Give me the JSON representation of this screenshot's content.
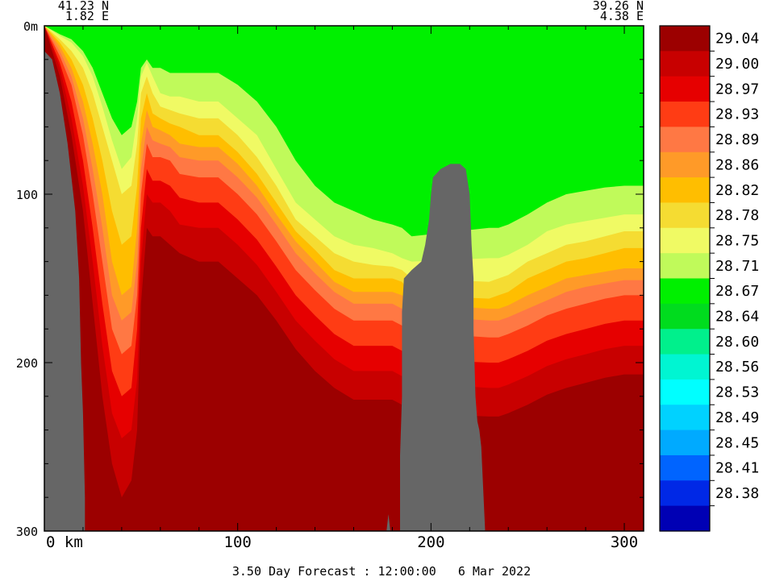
{
  "chart_data": {
    "type": "heatmap",
    "subtype": "vertical section (depth vs along-track distance)",
    "start_label": {
      "lat": "41.23 N",
      "lon": "1.82 E"
    },
    "end_label": {
      "lat": "39.26 N",
      "lon": "4.38 E"
    },
    "x": {
      "unit_label": "km",
      "range": [
        0,
        310
      ],
      "ticks": [
        0,
        100,
        200,
        300
      ],
      "tick_labels": [
        "0 km",
        "100",
        "200",
        "300"
      ]
    },
    "y": {
      "unit_label": "m",
      "range": [
        0,
        300
      ],
      "inverted": true,
      "ticks": [
        0,
        100,
        200,
        300
      ],
      "tick_labels": [
        "0m",
        "100",
        "200",
        "300"
      ]
    },
    "colorbar": {
      "position": "right",
      "levels": [
        "29.04",
        "29.00",
        "28.97",
        "28.93",
        "28.89",
        "28.86",
        "28.82",
        "28.78",
        "28.75",
        "28.71",
        "28.67",
        "28.64",
        "28.60",
        "28.56",
        "28.53",
        "28.49",
        "28.45",
        "28.41",
        "28.38"
      ],
      "colors": [
        "#9c0000",
        "#c80000",
        "#e60000",
        "#ff3c14",
        "#ff7844",
        "#ff9a28",
        "#ffbe00",
        "#f5dc32",
        "#f0fa64",
        "#c0fa5a",
        "#00f000",
        "#00dc1e",
        "#00f08c",
        "#00f5d2",
        "#00ffff",
        "#00d2ff",
        "#00aaff",
        "#0064ff",
        "#0028e6",
        "#0000b4"
      ]
    },
    "topography": {
      "color": "#666666",
      "left_slope": [
        [
          0,
          15
        ],
        [
          4,
          20
        ],
        [
          8,
          40
        ],
        [
          12,
          70
        ],
        [
          16,
          110
        ],
        [
          18,
          150
        ],
        [
          19,
          200
        ],
        [
          20,
          230
        ],
        [
          21,
          280
        ],
        [
          21,
          300
        ]
      ],
      "seamount": [
        [
          177,
          300
        ],
        [
          178,
          290
        ],
        [
          179,
          300
        ],
        [
          184,
          300
        ],
        [
          184,
          255
        ],
        [
          185,
          220
        ],
        [
          185,
          170
        ],
        [
          186,
          150
        ],
        [
          190,
          145
        ],
        [
          195,
          140
        ],
        [
          197,
          130
        ],
        [
          199,
          115
        ],
        [
          200,
          100
        ],
        [
          201,
          90
        ],
        [
          205,
          85
        ],
        [
          210,
          82
        ],
        [
          215,
          82
        ],
        [
          218,
          85
        ],
        [
          220,
          100
        ],
        [
          221,
          130
        ],
        [
          222,
          150
        ],
        [
          222,
          180
        ],
        [
          223,
          220
        ],
        [
          224,
          235
        ],
        [
          225,
          240
        ],
        [
          226,
          250
        ],
        [
          227,
          275
        ],
        [
          228,
          300
        ]
      ]
    },
    "fields": {
      "boundaries_x": [
        0,
        8,
        14,
        20,
        25,
        30,
        35,
        40,
        45,
        48,
        50,
        53,
        56,
        60,
        65,
        70,
        80,
        90,
        100,
        110,
        120,
        130,
        140,
        150,
        160,
        170,
        180,
        185,
        190,
        230,
        235,
        240,
        250,
        260,
        270,
        280,
        290,
        300,
        310
      ],
      "boundaries_depth": [
        [
          0,
          0,
          0,
          0,
          0,
          0,
          0,
          0,
          0,
          0,
          0,
          0,
          0,
          0,
          0,
          0,
          0,
          0,
          0,
          0,
          0,
          0,
          0,
          0,
          0,
          0,
          0,
          0,
          0,
          0,
          0,
          0,
          0,
          0,
          0,
          0,
          0,
          0,
          0
        ],
        [
          0,
          0,
          0,
          0,
          0,
          0,
          0,
          0,
          0,
          0,
          0,
          0,
          0,
          0,
          0,
          0,
          0,
          0,
          0,
          0,
          0,
          0,
          0,
          0,
          0,
          0,
          0,
          0,
          0,
          0,
          0,
          0,
          0,
          0,
          0,
          0,
          0,
          0,
          0
        ],
        [
          0,
          0,
          0,
          0,
          0,
          0,
          0,
          0,
          0,
          0,
          0,
          0,
          0,
          0,
          0,
          0,
          0,
          0,
          0,
          0,
          0,
          0,
          0,
          0,
          0,
          0,
          0,
          0,
          0,
          0,
          0,
          0,
          0,
          0,
          0,
          0,
          0,
          0,
          0
        ],
        [
          0,
          0,
          0,
          0,
          0,
          0,
          0,
          0,
          0,
          0,
          0,
          0,
          0,
          0,
          0,
          0,
          0,
          0,
          0,
          0,
          0,
          0,
          0,
          0,
          0,
          0,
          0,
          0,
          0,
          0,
          0,
          0,
          0,
          0,
          0,
          0,
          0,
          0,
          0
        ],
        [
          0,
          0,
          0,
          0,
          0,
          0,
          0,
          0,
          0,
          0,
          0,
          0,
          0,
          0,
          0,
          0,
          0,
          0,
          0,
          0,
          0,
          0,
          0,
          0,
          0,
          0,
          0,
          0,
          0,
          0,
          0,
          0,
          0,
          0,
          0,
          0,
          0,
          0,
          0
        ],
        [
          0,
          0,
          0,
          0,
          0,
          0,
          0,
          0,
          0,
          0,
          0,
          0,
          0,
          0,
          0,
          0,
          0,
          0,
          0,
          0,
          0,
          0,
          0,
          0,
          0,
          0,
          0,
          0,
          0,
          0,
          0,
          0,
          0,
          0,
          0,
          0,
          0,
          0,
          0
        ],
        [
          0,
          0,
          0,
          0,
          0,
          0,
          0,
          0,
          0,
          0,
          0,
          0,
          0,
          0,
          0,
          0,
          0,
          0,
          0,
          0,
          0,
          0,
          0,
          0,
          0,
          0,
          0,
          0,
          0,
          0,
          0,
          0,
          0,
          0,
          0,
          0,
          0,
          0,
          0
        ],
        [
          0,
          0,
          0,
          0,
          0,
          0,
          0,
          0,
          0,
          0,
          0,
          0,
          0,
          0,
          0,
          0,
          0,
          0,
          0,
          0,
          0,
          0,
          0,
          0,
          0,
          0,
          0,
          0,
          0,
          0,
          0,
          0,
          0,
          0,
          0,
          0,
          0,
          0,
          0
        ],
        [
          0,
          0,
          0,
          0,
          0,
          0,
          0,
          0,
          0,
          0,
          0,
          0,
          0,
          0,
          0,
          0,
          0,
          0,
          0,
          0,
          0,
          0,
          0,
          0,
          0,
          0,
          0,
          0,
          0,
          0,
          0,
          0,
          0,
          0,
          0,
          0,
          0,
          0,
          0
        ],
        [
          0,
          5,
          8,
          15,
          25,
          40,
          55,
          65,
          60,
          45,
          25,
          20,
          25,
          25,
          28,
          28,
          28,
          28,
          35,
          45,
          60,
          80,
          95,
          105,
          110,
          115,
          118,
          120,
          125,
          120,
          120,
          118,
          112,
          105,
          100,
          98,
          96,
          95,
          95
        ],
        [
          0,
          6,
          10,
          18,
          30,
          48,
          68,
          85,
          78,
          55,
          30,
          22,
          30,
          40,
          42,
          42,
          45,
          45,
          55,
          65,
          85,
          105,
          115,
          125,
          130,
          132,
          135,
          138,
          140,
          138,
          138,
          136,
          130,
          122,
          118,
          116,
          114,
          112,
          112
        ],
        [
          0,
          8,
          15,
          25,
          40,
          60,
          80,
          100,
          95,
          70,
          40,
          30,
          40,
          48,
          50,
          52,
          55,
          55,
          65,
          78,
          95,
          115,
          125,
          135,
          140,
          142,
          143,
          145,
          150,
          152,
          150,
          148,
          140,
          135,
          130,
          128,
          125,
          122,
          122
        ],
        [
          0,
          10,
          20,
          35,
          55,
          80,
          110,
          130,
          125,
          95,
          55,
          40,
          52,
          55,
          58,
          60,
          65,
          65,
          75,
          88,
          105,
          122,
          133,
          145,
          150,
          150,
          150,
          152,
          160,
          162,
          160,
          158,
          150,
          145,
          140,
          138,
          135,
          132,
          132
        ],
        [
          0,
          12,
          25,
          45,
          70,
          100,
          140,
          160,
          155,
          120,
          70,
          50,
          60,
          62,
          65,
          70,
          72,
          72,
          82,
          95,
          112,
          128,
          140,
          152,
          158,
          158,
          158,
          160,
          165,
          168,
          168,
          166,
          160,
          155,
          150,
          148,
          146,
          144,
          144
        ],
        [
          0,
          15,
          30,
          55,
          85,
          120,
          160,
          175,
          170,
          140,
          85,
          60,
          68,
          70,
          72,
          78,
          80,
          80,
          90,
          102,
          118,
          135,
          147,
          158,
          165,
          165,
          165,
          168,
          172,
          175,
          175,
          173,
          168,
          163,
          158,
          155,
          153,
          151,
          151
        ],
        [
          0,
          18,
          35,
          65,
          100,
          140,
          180,
          195,
          190,
          160,
          100,
          70,
          78,
          78,
          80,
          88,
          90,
          90,
          100,
          112,
          128,
          145,
          157,
          168,
          175,
          175,
          175,
          178,
          182,
          185,
          185,
          183,
          178,
          172,
          168,
          165,
          162,
          160,
          160
        ],
        [
          0,
          22,
          45,
          80,
          120,
          165,
          205,
          220,
          215,
          180,
          120,
          85,
          92,
          92,
          95,
          102,
          105,
          105,
          115,
          127,
          143,
          160,
          172,
          183,
          190,
          190,
          190,
          193,
          198,
          200,
          200,
          198,
          193,
          187,
          183,
          180,
          177,
          175,
          175
        ],
        [
          0,
          25,
          55,
          95,
          140,
          190,
          230,
          245,
          240,
          210,
          140,
          100,
          105,
          105,
          110,
          118,
          120,
          120,
          130,
          142,
          158,
          175,
          187,
          198,
          205,
          205,
          205,
          208,
          212,
          215,
          215,
          213,
          208,
          202,
          198,
          195,
          192,
          190,
          190
        ],
        [
          0,
          30,
          65,
          110,
          165,
          220,
          260,
          280,
          270,
          240,
          165,
          120,
          125,
          125,
          130,
          135,
          140,
          140,
          150,
          160,
          175,
          192,
          205,
          215,
          222,
          222,
          222,
          225,
          230,
          232,
          232,
          230,
          225,
          219,
          215,
          212,
          209,
          207,
          207
        ],
        [
          0,
          35,
          80,
          130,
          195,
          260,
          300,
          300,
          300,
          280,
          195,
          145,
          150,
          150,
          155,
          160,
          165,
          165,
          175,
          185,
          200,
          215,
          228,
          238,
          245,
          245,
          245,
          248,
          252,
          255,
          255,
          253,
          248,
          242,
          238,
          235,
          232,
          230,
          230
        ]
      ],
      "note": ""
    }
  },
  "footer": {
    "text": "3.50 Day Forecast : 12:00:00   6 Mar 2022"
  }
}
